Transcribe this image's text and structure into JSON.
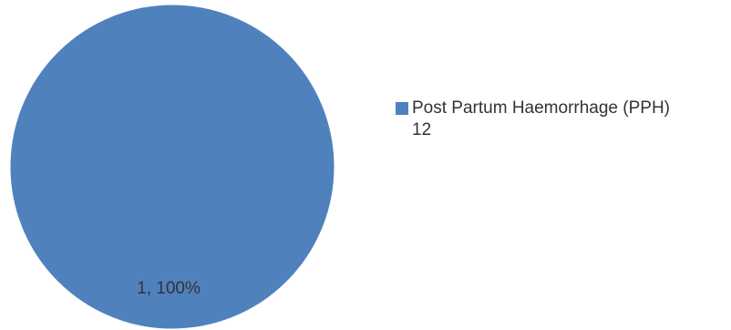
{
  "chart_data": {
    "type": "pie",
    "categories": [
      "Post Partum Haemorrhage (PPH) 12"
    ],
    "values": [
      1
    ],
    "data_labels": [
      "1, 100%"
    ],
    "legend": {
      "position": "right",
      "entries": [
        {
          "line1": "Post Partum Haemorrhage (PPH)",
          "line2": "12"
        }
      ]
    },
    "colors": [
      "#4f81bd"
    ]
  }
}
